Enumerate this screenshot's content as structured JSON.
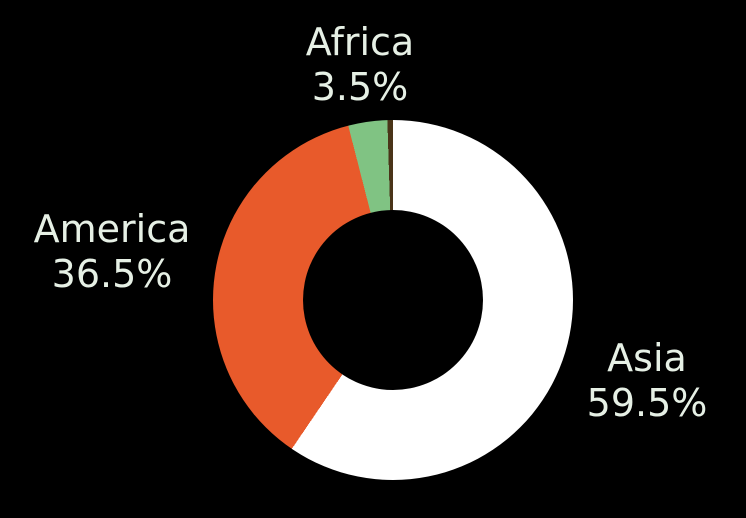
{
  "background": "#000000",
  "chart_data": {
    "type": "pie",
    "subtype": "donut",
    "title": "",
    "legend": "none",
    "labels_position": "outside",
    "start_angle_deg": 0,
    "direction": "clockwise",
    "hole_ratio": 0.5,
    "label_color": "#E6F0E5",
    "segments": [
      {
        "label": "Asia",
        "value": 59.5,
        "display": "59.5%",
        "color": "#FFFFFF"
      },
      {
        "label": "America",
        "value": 36.5,
        "display": "36.5%",
        "color": "#E85A2B"
      },
      {
        "label": "Africa",
        "value": 3.5,
        "display": "3.5%",
        "color": "#80C383"
      },
      {
        "label": "",
        "value": 0.5,
        "display": "",
        "color": "#4A3418"
      }
    ]
  }
}
